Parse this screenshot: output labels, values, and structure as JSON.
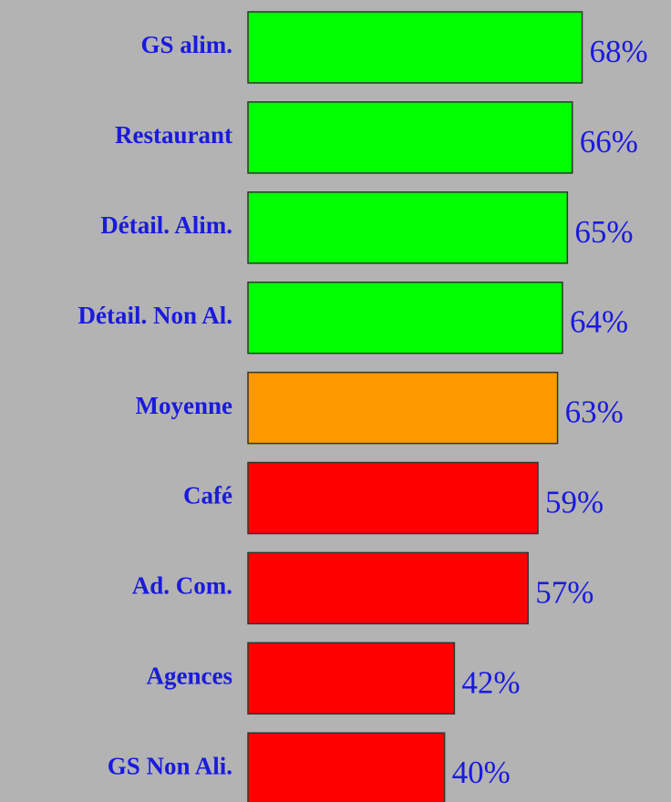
{
  "chart_data": {
    "type": "bar",
    "orientation": "horizontal",
    "categories": [
      "GS alim.",
      "Restaurant",
      "Détail. Alim.",
      "Détail. Non Al.",
      "Moyenne",
      "Café",
      "Ad. Com.",
      "Agences",
      "GS Non Ali."
    ],
    "values": [
      68,
      66,
      65,
      64,
      63,
      59,
      57,
      42,
      40
    ],
    "value_labels": [
      "68%",
      "66%",
      "65%",
      "64%",
      "63%",
      "59%",
      "57%",
      "42%",
      "40%"
    ],
    "colors": [
      "#00ff00",
      "#00ff00",
      "#00ff00",
      "#00ff00",
      "#ff9900",
      "#ff0000",
      "#ff0000",
      "#ff0000",
      "#ff0000"
    ]
  }
}
